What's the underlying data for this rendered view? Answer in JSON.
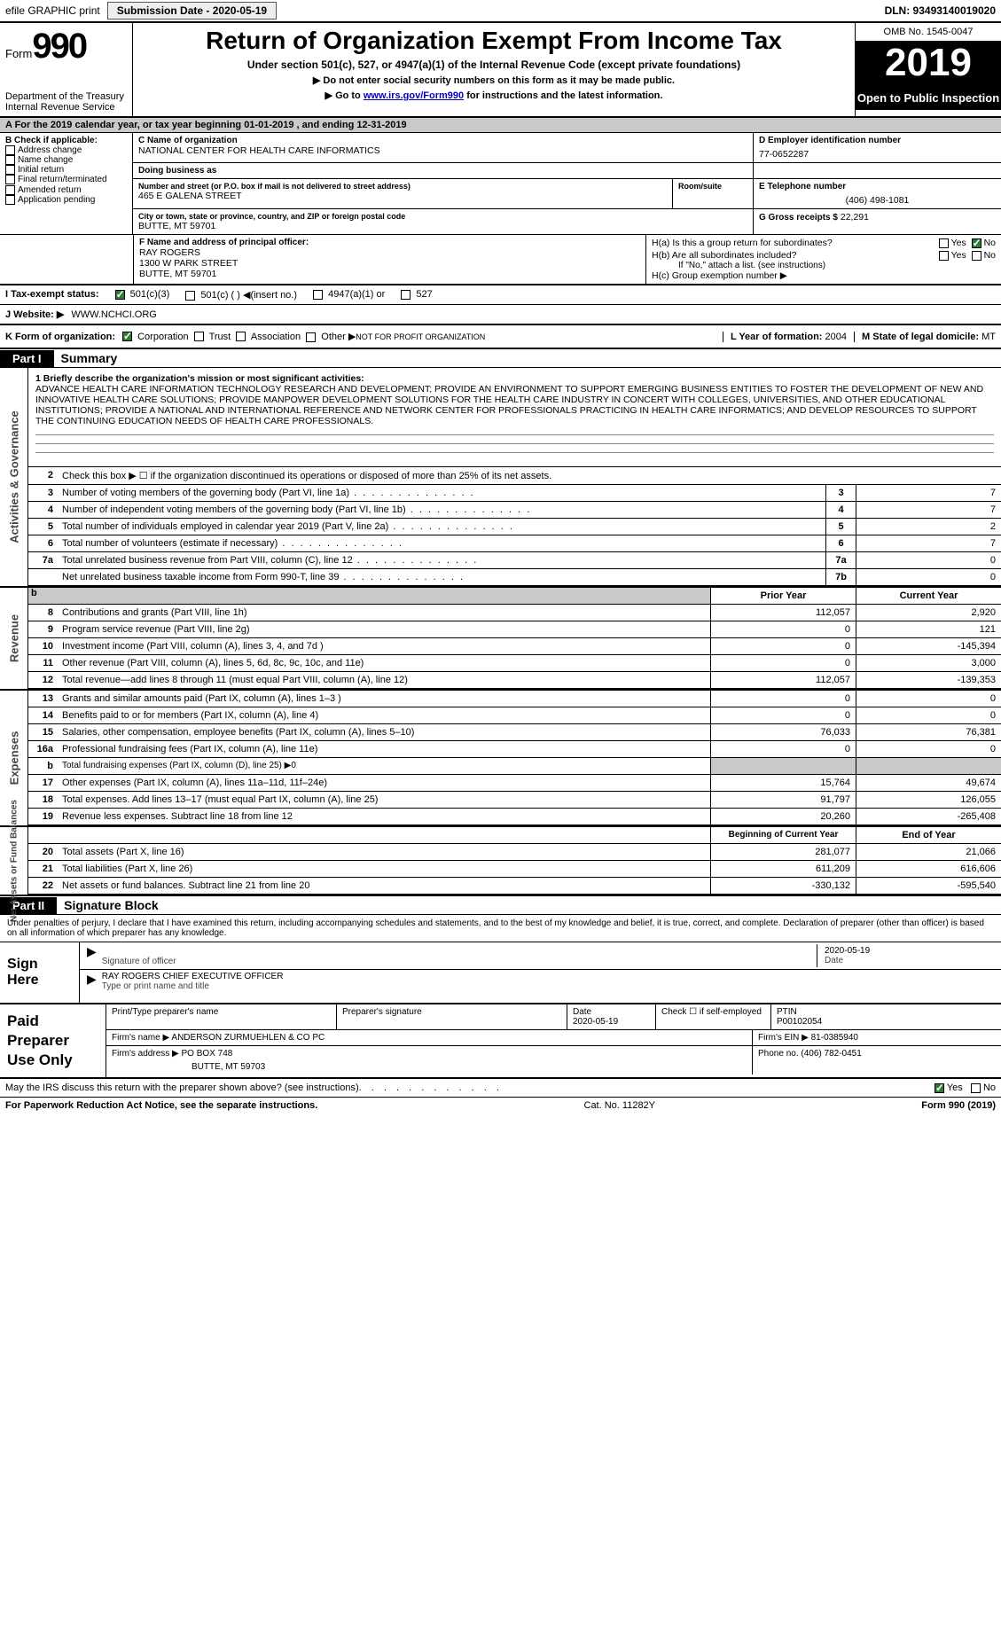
{
  "top_bar": {
    "efile": "efile GRAPHIC print",
    "submission_label": "Submission Date - 2020-05-19",
    "dln": "DLN: 93493140019020"
  },
  "header": {
    "form_word": "Form",
    "form_number": "990",
    "dept": "Department of the Treasury\nInternal Revenue Service",
    "title": "Return of Organization Exempt From Income Tax",
    "subtitle": "Under section 501(c), 527, or 4947(a)(1) of the Internal Revenue Code (except private foundations)",
    "note1": "▶ Do not enter social security numbers on this form as it may be made public.",
    "note2_pre": "▶ Go to ",
    "note2_link": "www.irs.gov/Form990",
    "note2_post": " for instructions and the latest information.",
    "omb": "OMB No. 1545-0047",
    "year": "2019",
    "open": "Open to Public Inspection"
  },
  "section_a": "A For the 2019 calendar year, or tax year beginning 01-01-2019   , and ending 12-31-2019",
  "b": {
    "title": "B Check if applicable:",
    "items": [
      "Address change",
      "Name change",
      "Initial return",
      "Final return/terminated",
      "Amended return",
      "Application pending"
    ]
  },
  "c": {
    "label": "C Name of organization",
    "name": "NATIONAL CENTER FOR HEALTH CARE INFORMATICS",
    "dba_label": "Doing business as",
    "street_label": "Number and street (or P.O. box if mail is not delivered to street address)",
    "street": "465 E GALENA STREET",
    "room_label": "Room/suite",
    "city_label": "City or town, state or province, country, and ZIP or foreign postal code",
    "city": "BUTTE, MT  59701"
  },
  "d": {
    "label": "D Employer identification number",
    "value": "77-0652287"
  },
  "e": {
    "label": "E Telephone number",
    "value": "(406) 498-1081"
  },
  "g": {
    "label": "G Gross receipts $",
    "value": "22,291"
  },
  "f": {
    "label": "F Name and address of principal officer:",
    "name": "RAY ROGERS",
    "street": "1300 W PARK STREET",
    "city": "BUTTE, MT  59701"
  },
  "h": {
    "a": "H(a)  Is this a group return for subordinates?",
    "b": "H(b)  Are all subordinates included?",
    "b_note": "If \"No,\" attach a list. (see instructions)",
    "c": "H(c)  Group exemption number ▶",
    "yes": "Yes",
    "no": "No"
  },
  "i": {
    "label": "I  Tax-exempt status:",
    "o1": "501(c)(3)",
    "o2": "501(c) (  ) ◀(insert no.)",
    "o3": "4947(a)(1) or",
    "o4": "527"
  },
  "j": {
    "label": "J  Website: ▶",
    "value": "WWW.NCHCI.ORG"
  },
  "k": {
    "label": "K Form of organization:",
    "o1": "Corporation",
    "o2": "Trust",
    "o3": "Association",
    "o4": "Other ▶",
    "other": "NOT FOR PROFIT ORGANIZATION"
  },
  "l": {
    "label": "L Year of formation:",
    "value": "2004"
  },
  "m": {
    "label": "M State of legal domicile:",
    "value": "MT"
  },
  "part1": {
    "tag": "Part I",
    "title": "Summary",
    "side_a": "Activities & Governance",
    "side_r": "Revenue",
    "side_e": "Expenses",
    "side_n": "Net Assets or Fund Balances",
    "mission_label": "1   Briefly describe the organization's mission or most significant activities:",
    "mission": "ADVANCE HEALTH CARE INFORMATION TECHNOLOGY RESEARCH AND DEVELOPMENT; PROVIDE AN ENVIRONMENT TO SUPPORT EMERGING BUSINESS ENTITIES TO FOSTER THE DEVELOPMENT OF NEW AND INNOVATIVE HEALTH CARE SOLUTIONS; PROVIDE MANPOWER DEVELOPMENT SOLUTIONS FOR THE HEALTH CARE INDUSTRY IN CONCERT WITH COLLEGES, UNIVERSITIES, AND OTHER EDUCATIONAL INSTITUTIONS; PROVIDE A NATIONAL AND INTERNATIONAL REFERENCE AND NETWORK CENTER FOR PROFESSIONALS PRACTICING IN HEALTH CARE INFORMATICS; AND DEVELOP RESOURCES TO SUPPORT THE CONTINUING EDUCATION NEEDS OF HEALTH CARE PROFESSIONALS.",
    "line2": "Check this box ▶ ☐  if the organization discontinued its operations or disposed of more than 25% of its net assets.",
    "rows_gov": [
      {
        "n": "3",
        "d": "Number of voting members of the governing body (Part VI, line 1a)",
        "bn": "3",
        "v": "7"
      },
      {
        "n": "4",
        "d": "Number of independent voting members of the governing body (Part VI, line 1b)",
        "bn": "4",
        "v": "7"
      },
      {
        "n": "5",
        "d": "Total number of individuals employed in calendar year 2019 (Part V, line 2a)",
        "bn": "5",
        "v": "2"
      },
      {
        "n": "6",
        "d": "Total number of volunteers (estimate if necessary)",
        "bn": "6",
        "v": "7"
      },
      {
        "n": "7a",
        "d": "Total unrelated business revenue from Part VIII, column (C), line 12",
        "bn": "7a",
        "v": "0"
      },
      {
        "n": "",
        "d": "Net unrelated business taxable income from Form 990-T, line 39",
        "bn": "7b",
        "v": "0"
      }
    ],
    "hdr_prior": "Prior Year",
    "hdr_current": "Current Year",
    "rows_rev": [
      {
        "n": "8",
        "d": "Contributions and grants (Part VIII, line 1h)",
        "p": "112,057",
        "c": "2,920"
      },
      {
        "n": "9",
        "d": "Program service revenue (Part VIII, line 2g)",
        "p": "0",
        "c": "121"
      },
      {
        "n": "10",
        "d": "Investment income (Part VIII, column (A), lines 3, 4, and 7d )",
        "p": "0",
        "c": "-145,394"
      },
      {
        "n": "11",
        "d": "Other revenue (Part VIII, column (A), lines 5, 6d, 8c, 9c, 10c, and 11e)",
        "p": "0",
        "c": "3,000"
      },
      {
        "n": "12",
        "d": "Total revenue—add lines 8 through 11 (must equal Part VIII, column (A), line 12)",
        "p": "112,057",
        "c": "-139,353"
      }
    ],
    "rows_exp": [
      {
        "n": "13",
        "d": "Grants and similar amounts paid (Part IX, column (A), lines 1–3 )",
        "p": "0",
        "c": "0"
      },
      {
        "n": "14",
        "d": "Benefits paid to or for members (Part IX, column (A), line 4)",
        "p": "0",
        "c": "0"
      },
      {
        "n": "15",
        "d": "Salaries, other compensation, employee benefits (Part IX, column (A), lines 5–10)",
        "p": "76,033",
        "c": "76,381"
      },
      {
        "n": "16a",
        "d": "Professional fundraising fees (Part IX, column (A), line 11e)",
        "p": "0",
        "c": "0"
      },
      {
        "n": "b",
        "d": "Total fundraising expenses (Part IX, column (D), line 25) ▶0",
        "p": "grey",
        "c": "grey"
      },
      {
        "n": "17",
        "d": "Other expenses (Part IX, column (A), lines 11a–11d, 11f–24e)",
        "p": "15,764",
        "c": "49,674"
      },
      {
        "n": "18",
        "d": "Total expenses. Add lines 13–17 (must equal Part IX, column (A), line 25)",
        "p": "91,797",
        "c": "126,055"
      },
      {
        "n": "19",
        "d": "Revenue less expenses. Subtract line 18 from line 12",
        "p": "20,260",
        "c": "-265,408"
      }
    ],
    "hdr_begin": "Beginning of Current Year",
    "hdr_end": "End of Year",
    "rows_net": [
      {
        "n": "20",
        "d": "Total assets (Part X, line 16)",
        "p": "281,077",
        "c": "21,066"
      },
      {
        "n": "21",
        "d": "Total liabilities (Part X, line 26)",
        "p": "611,209",
        "c": "616,606"
      },
      {
        "n": "22",
        "d": "Net assets or fund balances. Subtract line 21 from line 20",
        "p": "-330,132",
        "c": "-595,540"
      }
    ]
  },
  "part2": {
    "tag": "Part II",
    "title": "Signature Block",
    "perjury": "Under penalties of perjury, I declare that I have examined this return, including accompanying schedules and statements, and to the best of my knowledge and belief, it is true, correct, and complete. Declaration of preparer (other than officer) is based on all information of which preparer has any knowledge.",
    "sign_here": "Sign Here",
    "sig_of_officer": "Signature of officer",
    "date": "Date",
    "date_val": "2020-05-19",
    "name_title": "RAY ROGERS CHIEF EXECUTIVE OFFICER",
    "type_name": "Type or print name and title",
    "paid_prep": "Paid Preparer Use Only",
    "print_name_label": "Print/Type preparer's name",
    "prep_sig_label": "Preparer's signature",
    "prep_date": "2020-05-19",
    "check_if": "Check ☐ if self-employed",
    "ptin_label": "PTIN",
    "ptin": "P00102054",
    "firm_name_label": "Firm's name    ▶",
    "firm_name": "ANDERSON ZURMUEHLEN & CO PC",
    "firm_ein_label": "Firm's EIN ▶",
    "firm_ein": "81-0385940",
    "firm_addr_label": "Firm's address ▶",
    "firm_addr1": "PO BOX 748",
    "firm_addr2": "BUTTE, MT  59703",
    "phone_label": "Phone no.",
    "phone": "(406) 782-0451"
  },
  "discuss": {
    "text": "May the IRS discuss this return with the preparer shown above? (see instructions)",
    "yes": "Yes",
    "no": "No"
  },
  "footer": {
    "pra": "For Paperwork Reduction Act Notice, see the separate instructions.",
    "cat": "Cat. No. 11282Y",
    "form": "Form 990 (2019)"
  },
  "colors": {
    "header_black": "#000000",
    "grey_bg": "#c9c9c9",
    "link": "#0000cc",
    "check_green": "#2e7d32",
    "side_text": "#444444"
  }
}
